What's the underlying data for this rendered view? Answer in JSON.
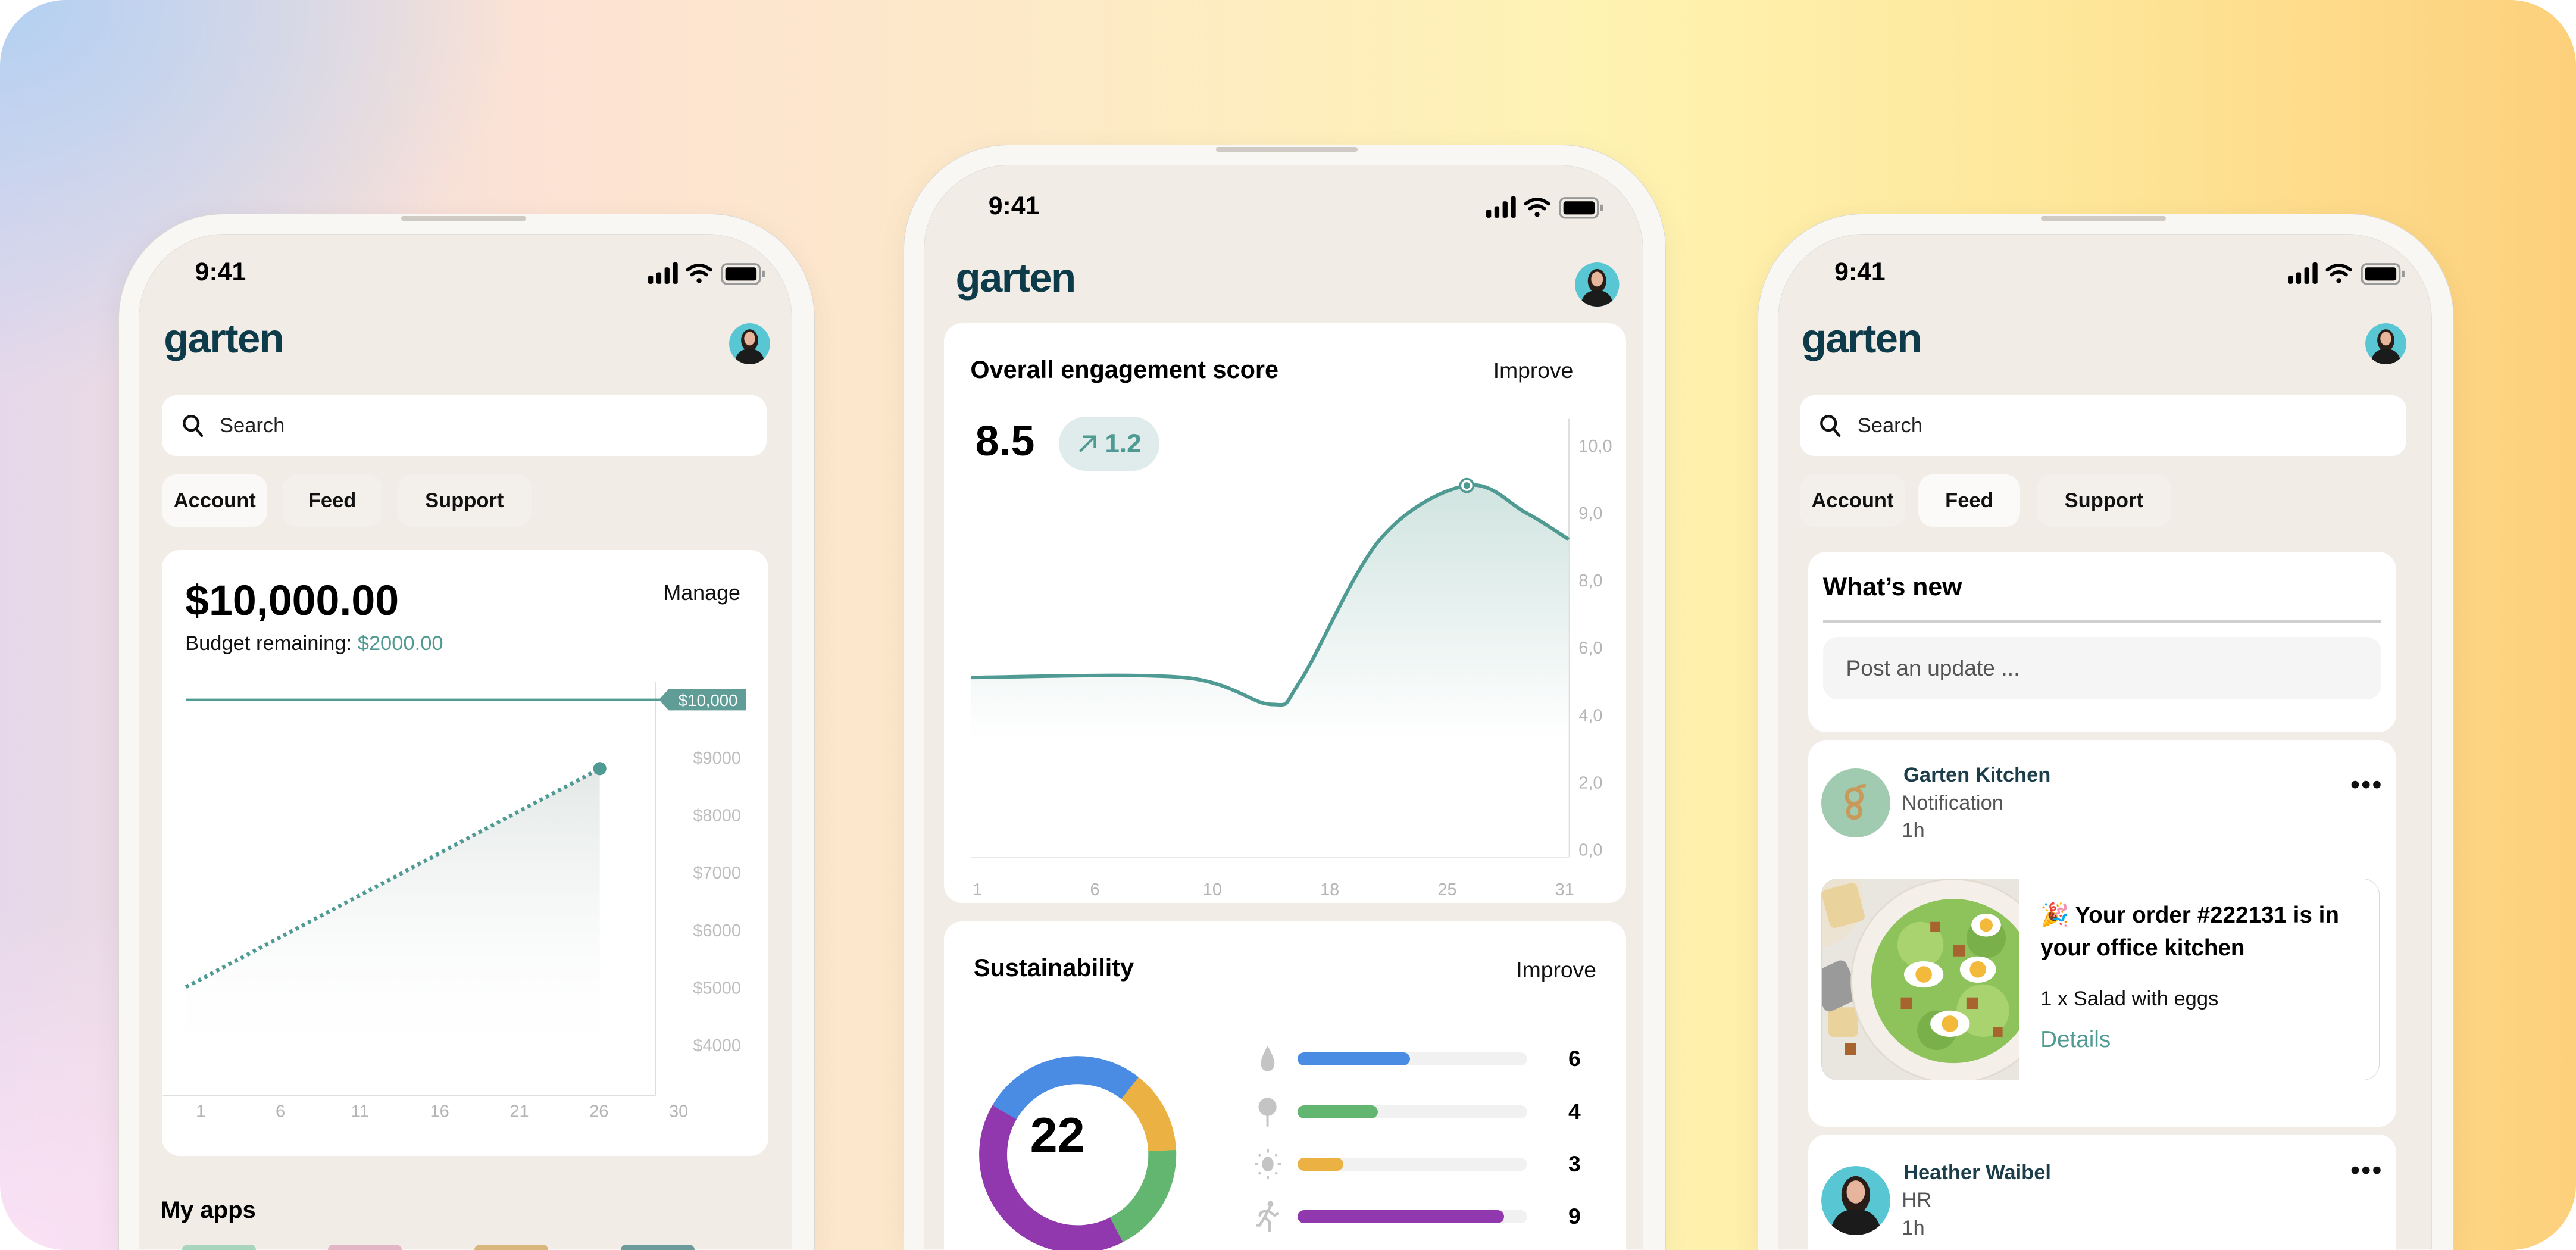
{
  "colors": {
    "accent": "#4f9a92",
    "logo": "#0d3b4a",
    "screen_bg": "#f1ede6",
    "water": "#4a8be3",
    "nature": "#62b66f",
    "energy": "#ebb143",
    "mobility": "#9238ae"
  },
  "left_phone": {
    "time": "9:41",
    "logo": "garten",
    "search_placeholder": "Search",
    "tabs": [
      "Account",
      "Feed",
      "Support"
    ],
    "active_tab": "Account",
    "budget": {
      "amount": "$10,000.00",
      "manage": "Manage",
      "remaining_label": "Budget remaining:",
      "remaining_value": "$2000.00"
    },
    "my_apps": "My apps"
  },
  "middle_phone": {
    "time": "9:41",
    "logo": "garten",
    "engagement": {
      "title": "Overall engagement score",
      "action": "Improve",
      "score": "8.5",
      "delta": "1.2",
      "delta_icon": "arrow-up-right-icon"
    },
    "sustainability": {
      "title": "Sustainability",
      "action": "Improve",
      "total": "22",
      "items": [
        {
          "icon": "water-drop-icon",
          "value": "6",
          "fill_percent": 49,
          "color": "#4a8be3"
        },
        {
          "icon": "tree-icon",
          "value": "4",
          "fill_percent": 35,
          "color": "#62b66f"
        },
        {
          "icon": "sun-icon",
          "value": "3",
          "fill_percent": 20,
          "color": "#ebb143"
        },
        {
          "icon": "runner-icon",
          "value": "9",
          "fill_percent": 90,
          "color": "#9238ae"
        }
      ]
    }
  },
  "right_phone": {
    "time": "9:41",
    "logo": "garten",
    "search_placeholder": "Search",
    "tabs": [
      "Account",
      "Feed",
      "Support"
    ],
    "active_tab": "Feed",
    "whats_new": {
      "title": "What’s new",
      "post_placeholder": "Post an update ..."
    },
    "posts": [
      {
        "author": "Garten Kitchen",
        "role": "Notification",
        "time": "1h",
        "order": {
          "emoji": "🎉",
          "title": "Your order #222131 is in your office kitchen",
          "item": "1 x Salad with eggs",
          "link": "Details"
        }
      },
      {
        "author": "Heather Waibel",
        "role": "HR",
        "time": "1h"
      }
    ]
  },
  "chart_data": [
    {
      "type": "line",
      "style": "dotted",
      "x_ticks": [
        1,
        6,
        11,
        16,
        21,
        26,
        30
      ],
      "y_ticks": [
        4000,
        5000,
        6000,
        7000,
        8000,
        9000
      ],
      "y_tick_labels": [
        "$4000",
        "$5000",
        "$6000",
        "$7000",
        "$8000",
        "$9000"
      ],
      "budget_line": {
        "value": 10000,
        "label": "$10,000"
      },
      "series": [
        {
          "points": [
            [
              1,
              5000
            ],
            [
              26,
              8800
            ]
          ]
        }
      ],
      "ylim": [
        3100,
        10300
      ],
      "grid": false
    },
    {
      "type": "area",
      "x_ticks": [
        1,
        6,
        10,
        18,
        25,
        31
      ],
      "y_ticks": [
        0,
        2,
        4,
        6,
        8,
        9,
        10
      ],
      "y_tick_labels": [
        "0,0",
        "2,0",
        "4,0",
        "6,0",
        "8,0",
        "9,0",
        "10,0"
      ],
      "series": [
        {
          "points": [
            [
              1,
              5.1
            ],
            [
              9,
              5.1
            ],
            [
              14,
              4.3
            ],
            [
              16,
              5.0
            ],
            [
              21,
              8.6
            ],
            [
              26,
              9.4
            ],
            [
              29,
              9.0
            ],
            [
              31,
              8.6
            ]
          ]
        }
      ],
      "highlight": [
        26,
        9.4
      ],
      "grid": false
    },
    {
      "type": "pie",
      "variant": "donut",
      "center_label": "22",
      "slices": [
        {
          "value": 6,
          "color": "#4a8be3"
        },
        {
          "value": 3,
          "color": "#ebb143"
        },
        {
          "value": 4,
          "color": "#62b66f"
        },
        {
          "value": 9,
          "color": "#9238ae"
        }
      ]
    }
  ]
}
